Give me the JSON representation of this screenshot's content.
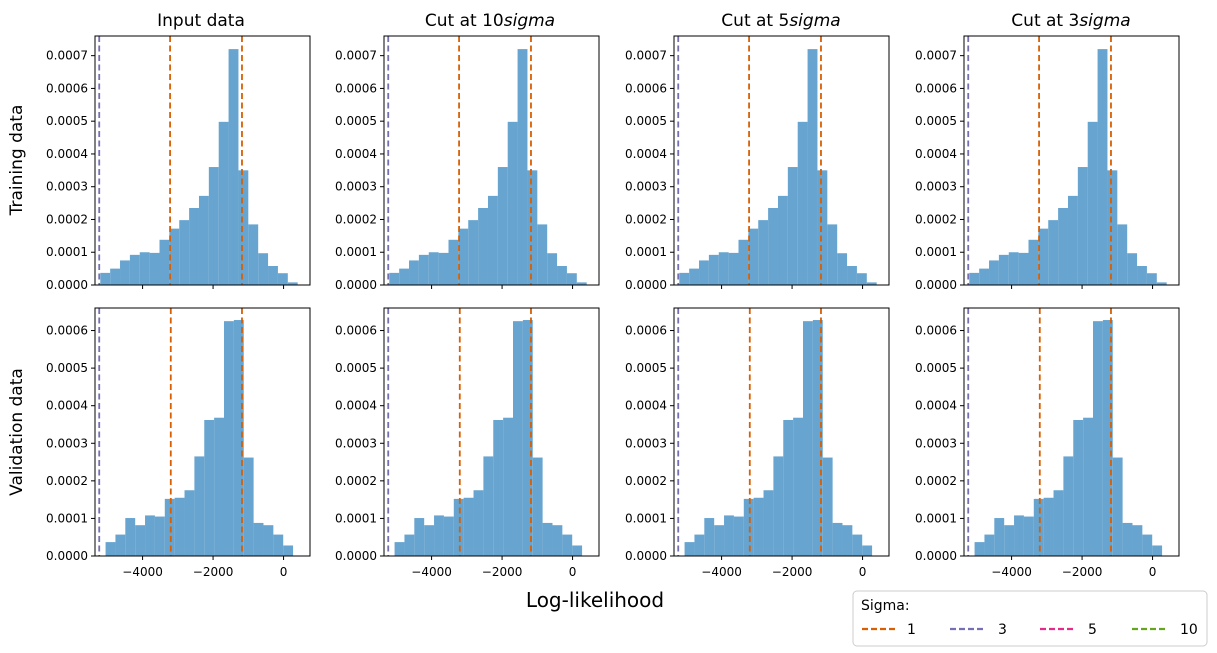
{
  "figure": {
    "xlabel": "Log-likelihood",
    "row_labels": [
      "Training data",
      "Validation data"
    ],
    "column_titles": [
      {
        "prefix": "Input data",
        "italic": ""
      },
      {
        "prefix": "Cut at 10",
        "italic": "sigma"
      },
      {
        "prefix": "Cut at 5",
        "italic": "sigma"
      },
      {
        "prefix": "Cut at 3",
        "italic": "sigma"
      }
    ]
  },
  "legend": {
    "title": "Sigma:",
    "placement": "bottom-right",
    "entries": [
      {
        "label": "1",
        "color": "#d95f02"
      },
      {
        "label": "3",
        "color": "#7570b3"
      },
      {
        "label": "5",
        "color": "#e7298a"
      },
      {
        "label": "10",
        "color": "#66a61e"
      }
    ]
  },
  "colors": {
    "bar": "#5f9fcc",
    "bar_opacity": 0.95
  },
  "chart_data": [
    {
      "type": "bar",
      "row": "Training data",
      "title": "Input data",
      "bin_edges": [
        -5200,
        -4920,
        -4640,
        -4360,
        -4080,
        -3800,
        -3520,
        -3240,
        -2960,
        -2680,
        -2400,
        -2120,
        -1840,
        -1560,
        -1280,
        -1000,
        -720,
        -440,
        -160,
        120,
        400
      ],
      "values": [
        3.7e-05,
        5e-05,
        7.5e-05,
        9.2e-05,
        0.0001,
        9.8e-05,
        0.000138,
        0.000172,
        0.000198,
        0.000235,
        0.000272,
        0.00036,
        0.000498,
        0.00072,
        0.00035,
        0.000185,
        9.7e-05,
        5.8e-05,
        3.6e-05,
        8e-06
      ],
      "sigma_lines": [
        {
          "sigma": "1",
          "x": -3220
        },
        {
          "sigma": "1",
          "x": -1180
        },
        {
          "sigma": "3",
          "x": -5230
        }
      ],
      "xlim": [
        -5350,
        750
      ],
      "ylim": [
        0,
        0.00076
      ],
      "xticks": [
        -4000,
        -2000,
        0
      ],
      "yticks": [
        0,
        0.0001,
        0.0002,
        0.0003,
        0.0004,
        0.0005,
        0.0006,
        0.0007
      ],
      "ytick_labels": [
        "0.0000",
        "0.0001",
        "0.0002",
        "0.0003",
        "0.0004",
        "0.0005",
        "0.0006",
        "0.0007"
      ]
    },
    {
      "type": "bar",
      "row": "Training data",
      "title": "Cut at 10sigma",
      "bin_edges": [
        -5200,
        -4920,
        -4640,
        -4360,
        -4080,
        -3800,
        -3520,
        -3240,
        -2960,
        -2680,
        -2400,
        -2120,
        -1840,
        -1560,
        -1280,
        -1000,
        -720,
        -440,
        -160,
        120,
        400
      ],
      "values": [
        3.7e-05,
        5e-05,
        7.5e-05,
        9.2e-05,
        0.0001,
        9.8e-05,
        0.000138,
        0.000172,
        0.000198,
        0.000235,
        0.000272,
        0.00036,
        0.000498,
        0.00072,
        0.00035,
        0.000185,
        9.7e-05,
        5.8e-05,
        3.6e-05,
        8e-06
      ],
      "sigma_lines": [
        {
          "sigma": "1",
          "x": -3220
        },
        {
          "sigma": "1",
          "x": -1180
        },
        {
          "sigma": "3",
          "x": -5230
        }
      ],
      "xlim": [
        -5350,
        750
      ],
      "ylim": [
        0,
        0.00076
      ],
      "xticks": [
        -4000,
        -2000,
        0
      ],
      "yticks": [
        0,
        0.0001,
        0.0002,
        0.0003,
        0.0004,
        0.0005,
        0.0006,
        0.0007
      ],
      "ytick_labels": [
        "0.0000",
        "0.0001",
        "0.0002",
        "0.0003",
        "0.0004",
        "0.0005",
        "0.0006",
        "0.0007"
      ]
    },
    {
      "type": "bar",
      "row": "Training data",
      "title": "Cut at 5sigma",
      "bin_edges": [
        -5200,
        -4920,
        -4640,
        -4360,
        -4080,
        -3800,
        -3520,
        -3240,
        -2960,
        -2680,
        -2400,
        -2120,
        -1840,
        -1560,
        -1280,
        -1000,
        -720,
        -440,
        -160,
        120,
        400
      ],
      "values": [
        3.7e-05,
        5e-05,
        7.5e-05,
        9.2e-05,
        0.0001,
        9.8e-05,
        0.000138,
        0.000172,
        0.000198,
        0.000235,
        0.000272,
        0.00036,
        0.000498,
        0.00072,
        0.00035,
        0.000185,
        9.7e-05,
        5.8e-05,
        3.6e-05,
        8e-06
      ],
      "sigma_lines": [
        {
          "sigma": "1",
          "x": -3220
        },
        {
          "sigma": "1",
          "x": -1180
        },
        {
          "sigma": "3",
          "x": -5230
        }
      ],
      "xlim": [
        -5350,
        750
      ],
      "ylim": [
        0,
        0.00076
      ],
      "xticks": [
        -4000,
        -2000,
        0
      ],
      "yticks": [
        0,
        0.0001,
        0.0002,
        0.0003,
        0.0004,
        0.0005,
        0.0006,
        0.0007
      ],
      "ytick_labels": [
        "0.0000",
        "0.0001",
        "0.0002",
        "0.0003",
        "0.0004",
        "0.0005",
        "0.0006",
        "0.0007"
      ]
    },
    {
      "type": "bar",
      "row": "Training data",
      "title": "Cut at 3sigma",
      "bin_edges": [
        -5200,
        -4920,
        -4640,
        -4360,
        -4080,
        -3800,
        -3520,
        -3240,
        -2960,
        -2680,
        -2400,
        -2120,
        -1840,
        -1560,
        -1280,
        -1000,
        -720,
        -440,
        -160,
        120,
        400
      ],
      "values": [
        3.7e-05,
        5e-05,
        7.5e-05,
        9.2e-05,
        0.0001,
        9.8e-05,
        0.000138,
        0.000172,
        0.000198,
        0.000235,
        0.000272,
        0.00036,
        0.000498,
        0.00072,
        0.00035,
        0.000185,
        9.7e-05,
        5.8e-05,
        3.6e-05,
        8e-06
      ],
      "sigma_lines": [
        {
          "sigma": "1",
          "x": -3220
        },
        {
          "sigma": "1",
          "x": -1180
        },
        {
          "sigma": "3",
          "x": -5230
        }
      ],
      "xlim": [
        -5350,
        750
      ],
      "ylim": [
        0,
        0.00076
      ],
      "xticks": [
        -4000,
        -2000,
        0
      ],
      "yticks": [
        0,
        0.0001,
        0.0002,
        0.0003,
        0.0004,
        0.0005,
        0.0006,
        0.0007
      ],
      "ytick_labels": [
        "0.0000",
        "0.0001",
        "0.0002",
        "0.0003",
        "0.0004",
        "0.0005",
        "0.0006",
        "0.0007"
      ]
    },
    {
      "type": "bar",
      "row": "Validation data",
      "title": "Input data",
      "bin_edges": [
        -5050,
        -4770,
        -4490,
        -4210,
        -3930,
        -3650,
        -3370,
        -3090,
        -2810,
        -2530,
        -2250,
        -1970,
        -1690,
        -1410,
        -1130,
        -850,
        -570,
        -290,
        -10,
        270
      ],
      "values": [
        3.7e-05,
        5.7e-05,
        0.000101,
        8.2e-05,
        0.000108,
        0.000105,
        0.000152,
        0.000155,
        0.000175,
        0.000265,
        0.000362,
        0.000368,
        0.000625,
        0.000628,
        0.000262,
        8.8e-05,
        8.2e-05,
        5.7e-05,
        2.8e-05
      ],
      "sigma_lines": [
        {
          "sigma": "1",
          "x": -3200
        },
        {
          "sigma": "1",
          "x": -1180
        },
        {
          "sigma": "3",
          "x": -5230
        }
      ],
      "xlim": [
        -5350,
        750
      ],
      "ylim": [
        0,
        0.00066
      ],
      "xticks": [
        -4000,
        -2000,
        0
      ],
      "yticks": [
        0,
        0.0001,
        0.0002,
        0.0003,
        0.0004,
        0.0005,
        0.0006
      ],
      "ytick_labels": [
        "0.0000",
        "0.0001",
        "0.0002",
        "0.0003",
        "0.0004",
        "0.0005",
        "0.0006"
      ]
    },
    {
      "type": "bar",
      "row": "Validation data",
      "title": "Cut at 10sigma",
      "bin_edges": [
        -5050,
        -4770,
        -4490,
        -4210,
        -3930,
        -3650,
        -3370,
        -3090,
        -2810,
        -2530,
        -2250,
        -1970,
        -1690,
        -1410,
        -1130,
        -850,
        -570,
        -290,
        -10,
        270
      ],
      "values": [
        3.7e-05,
        5.7e-05,
        0.000101,
        8.2e-05,
        0.000108,
        0.000105,
        0.000152,
        0.000155,
        0.000175,
        0.000265,
        0.000362,
        0.000368,
        0.000625,
        0.000628,
        0.000262,
        8.8e-05,
        8.2e-05,
        5.7e-05,
        2.8e-05
      ],
      "sigma_lines": [
        {
          "sigma": "1",
          "x": -3200
        },
        {
          "sigma": "1",
          "x": -1180
        },
        {
          "sigma": "3",
          "x": -5230
        }
      ],
      "xlim": [
        -5350,
        750
      ],
      "ylim": [
        0,
        0.00066
      ],
      "xticks": [
        -4000,
        -2000,
        0
      ],
      "yticks": [
        0,
        0.0001,
        0.0002,
        0.0003,
        0.0004,
        0.0005,
        0.0006
      ],
      "ytick_labels": [
        "0.0000",
        "0.0001",
        "0.0002",
        "0.0003",
        "0.0004",
        "0.0005",
        "0.0006"
      ]
    },
    {
      "type": "bar",
      "row": "Validation data",
      "title": "Cut at 5sigma",
      "bin_edges": [
        -5050,
        -4770,
        -4490,
        -4210,
        -3930,
        -3650,
        -3370,
        -3090,
        -2810,
        -2530,
        -2250,
        -1970,
        -1690,
        -1410,
        -1130,
        -850,
        -570,
        -290,
        -10,
        270
      ],
      "values": [
        3.7e-05,
        5.7e-05,
        0.000101,
        8.2e-05,
        0.000108,
        0.000105,
        0.000152,
        0.000155,
        0.000175,
        0.000265,
        0.000362,
        0.000368,
        0.000625,
        0.000628,
        0.000262,
        8.8e-05,
        8.2e-05,
        5.7e-05,
        2.8e-05
      ],
      "sigma_lines": [
        {
          "sigma": "1",
          "x": -3200
        },
        {
          "sigma": "1",
          "x": -1180
        },
        {
          "sigma": "3",
          "x": -5230
        }
      ],
      "xlim": [
        -5350,
        750
      ],
      "ylim": [
        0,
        0.00066
      ],
      "xticks": [
        -4000,
        -2000,
        0
      ],
      "yticks": [
        0,
        0.0001,
        0.0002,
        0.0003,
        0.0004,
        0.0005,
        0.0006
      ],
      "ytick_labels": [
        "0.0000",
        "0.0001",
        "0.0002",
        "0.0003",
        "0.0004",
        "0.0005",
        "0.0006"
      ]
    },
    {
      "type": "bar",
      "row": "Validation data",
      "title": "Cut at 3sigma",
      "bin_edges": [
        -5050,
        -4770,
        -4490,
        -4210,
        -3930,
        -3650,
        -3370,
        -3090,
        -2810,
        -2530,
        -2250,
        -1970,
        -1690,
        -1410,
        -1130,
        -850,
        -570,
        -290,
        -10,
        270
      ],
      "values": [
        3.7e-05,
        5.7e-05,
        0.000101,
        8.2e-05,
        0.000108,
        0.000105,
        0.000152,
        0.000155,
        0.000175,
        0.000265,
        0.000362,
        0.000368,
        0.000625,
        0.000628,
        0.000262,
        8.8e-05,
        8.2e-05,
        5.7e-05,
        2.8e-05
      ],
      "sigma_lines": [
        {
          "sigma": "1",
          "x": -3200
        },
        {
          "sigma": "1",
          "x": -1180
        },
        {
          "sigma": "3",
          "x": -5230
        }
      ],
      "xlim": [
        -5350,
        750
      ],
      "ylim": [
        0,
        0.00066
      ],
      "xticks": [
        -4000,
        -2000,
        0
      ],
      "yticks": [
        0,
        0.0001,
        0.0002,
        0.0003,
        0.0004,
        0.0005,
        0.0006
      ],
      "ytick_labels": [
        "0.0000",
        "0.0001",
        "0.0002",
        "0.0003",
        "0.0004",
        "0.0005",
        "0.0006"
      ]
    }
  ]
}
